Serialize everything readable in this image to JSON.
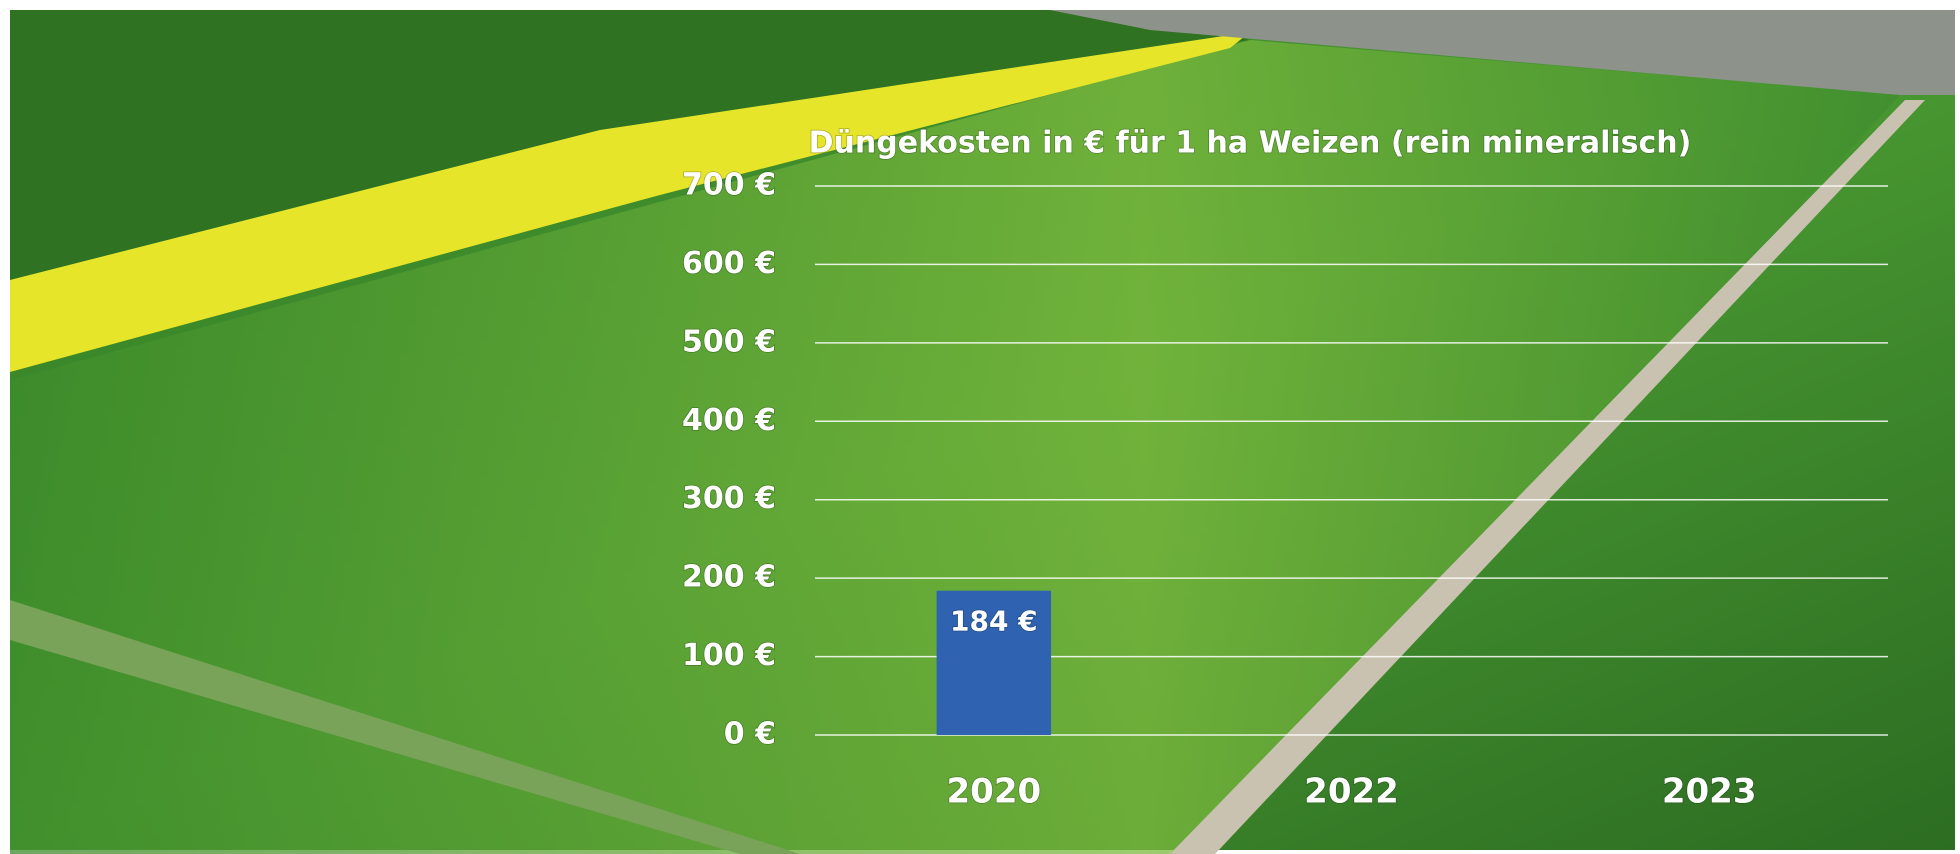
{
  "chart_data": {
    "type": "bar",
    "title": "Düngekosten in € für 1 ha Weizen (rein mineralisch)",
    "categories": [
      "2020",
      "2022",
      "2023"
    ],
    "values": [
      184,
      null,
      null
    ],
    "value_labels": [
      "184 €",
      null,
      null
    ],
    "color": "#2f62b0",
    "ylim": [
      0,
      700
    ],
    "yticks": [
      {
        "value": 0,
        "label": "0 €"
      },
      {
        "value": 100,
        "label": "100 €"
      },
      {
        "value": 200,
        "label": "200 €"
      },
      {
        "value": 300,
        "label": "300 €"
      },
      {
        "value": 400,
        "label": "400 €"
      },
      {
        "value": 500,
        "label": "500 €"
      },
      {
        "value": 600,
        "label": "600 €"
      },
      {
        "value": 700,
        "label": "700 €"
      }
    ],
    "grid": true
  }
}
